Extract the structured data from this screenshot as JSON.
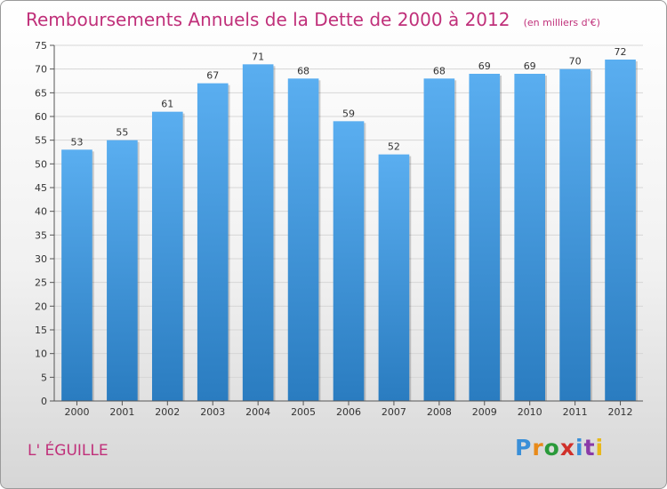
{
  "chart_data": {
    "type": "bar",
    "title": "Remboursements Annuels de la Dette de 2000 à 2012",
    "subtitle": "(en milliers d'€)",
    "categories": [
      "2000",
      "2001",
      "2002",
      "2003",
      "2004",
      "2005",
      "2006",
      "2007",
      "2008",
      "2009",
      "2010",
      "2011",
      "2012"
    ],
    "values": [
      53,
      55,
      61,
      67,
      71,
      68,
      59,
      52,
      68,
      69,
      69,
      70,
      72
    ],
    "ylim": [
      0,
      75
    ],
    "yticks": [
      0,
      5,
      10,
      15,
      20,
      25,
      30,
      35,
      40,
      45,
      50,
      55,
      60,
      65,
      70,
      75
    ],
    "grid": true,
    "xlabel": "",
    "ylabel": "",
    "bar_color_top": "#5aaef0",
    "bar_color_bottom": "#2a7cc0"
  },
  "footer": {
    "commune": "L' ÉGUILLE",
    "logo_text": "Proxiti"
  },
  "colors": {
    "title": "#c0307a",
    "logo": [
      "#3a8fd8",
      "#e88a1a",
      "#2a9a3a",
      "#d0302a",
      "#3a8fd8",
      "#8a3aa8",
      "#e8b81a"
    ]
  }
}
